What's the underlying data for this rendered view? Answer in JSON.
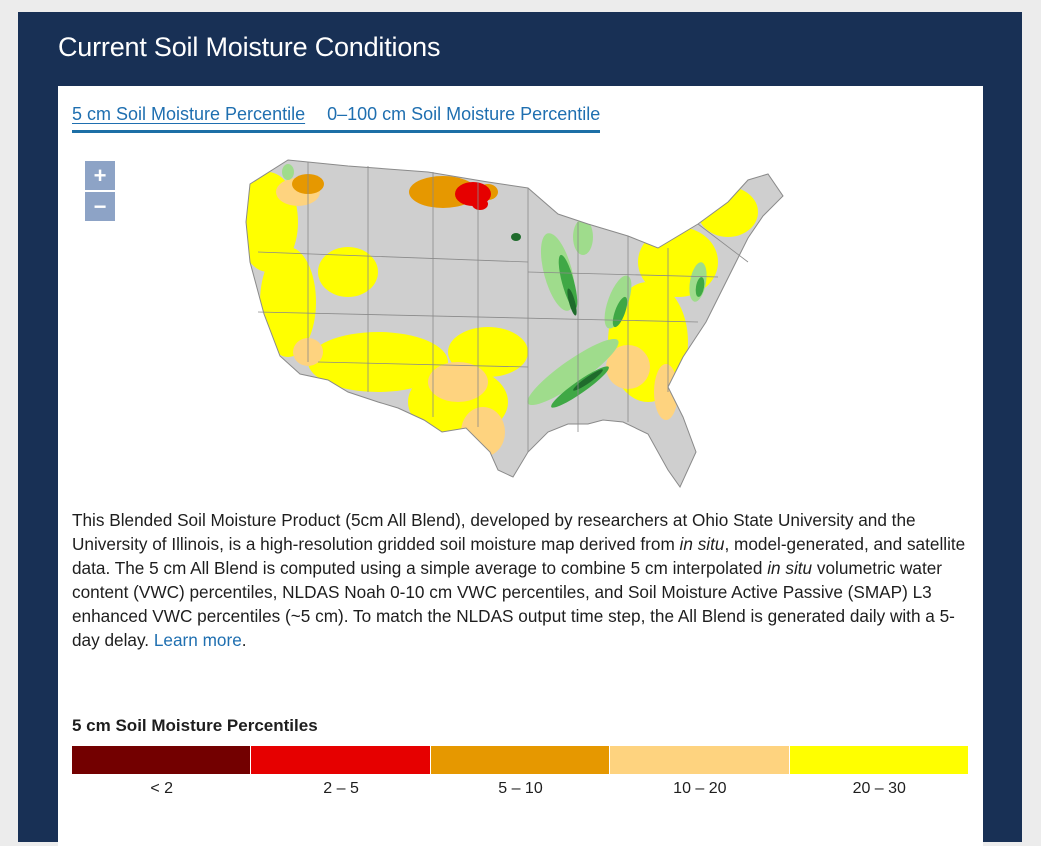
{
  "header": {
    "title": "Current Soil Moisture Conditions"
  },
  "tabs": [
    {
      "label": "5 cm Soil Moisture Percentile",
      "active": true
    },
    {
      "label": "0–100 cm Soil Moisture Percentile",
      "active": false
    }
  ],
  "zoom": {
    "in_label": "+",
    "out_label": "−"
  },
  "description": {
    "p1": "This Blended Soil Moisture Product (5cm All Blend), developed by researchers at Ohio State University and the University of Illinois, is a high-resolution gridded soil moisture map derived from ",
    "em1": "in situ",
    "p2": ", model-generated, and satellite data. The 5 cm All Blend is computed using a simple average to combine 5 cm interpolated ",
    "em2": "in situ",
    "p3": " volumetric water content (VWC) percentiles, NLDAS Noah 0-10 cm VWC percentiles, and Soil Moisture Active Passive (SMAP) L3 enhanced VWC percentiles (~5 cm). To match the NLDAS output time step, the All Blend is generated daily with a 5-day delay. ",
    "link": "Learn more",
    "end": "."
  },
  "legend": {
    "title": "5 cm Soil Moisture Percentiles",
    "items": [
      {
        "label": "< 2",
        "color": "#730000"
      },
      {
        "label": "2 – 5",
        "color": "#e60000"
      },
      {
        "label": "5 – 10",
        "color": "#e69800"
      },
      {
        "label": "10 – 20",
        "color": "#fed37f"
      },
      {
        "label": "20 – 30",
        "color": "#ffff00"
      }
    ]
  },
  "map_colors": {
    "land": "#cfcfcf",
    "border": "#8a8a8a",
    "wet_light": "#9fdc8c",
    "wet_mid": "#3fa845",
    "wet_dark": "#1f6b2c"
  }
}
